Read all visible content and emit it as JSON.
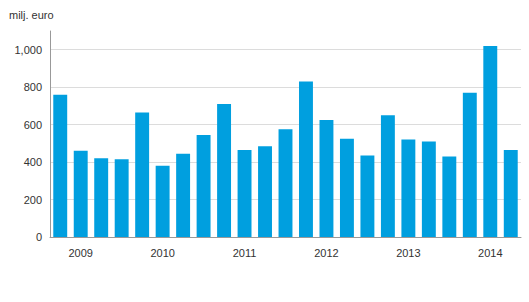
{
  "chart_data": {
    "type": "bar",
    "ylabel": "milj. euro",
    "categories": [
      null,
      "2009",
      null,
      null,
      null,
      "2010",
      null,
      null,
      null,
      "2011",
      null,
      null,
      null,
      "2012",
      null,
      null,
      null,
      "2013",
      null,
      null,
      null,
      "2014",
      null
    ],
    "values": [
      760,
      460,
      420,
      415,
      665,
      380,
      445,
      545,
      710,
      465,
      485,
      575,
      830,
      625,
      525,
      435,
      650,
      520,
      510,
      430,
      770,
      1020,
      465
    ],
    "color": "#009fdf",
    "ylim": [
      0,
      1100
    ],
    "yticks": [
      0,
      200,
      400,
      600,
      800,
      1000
    ],
    "grid": true
  }
}
